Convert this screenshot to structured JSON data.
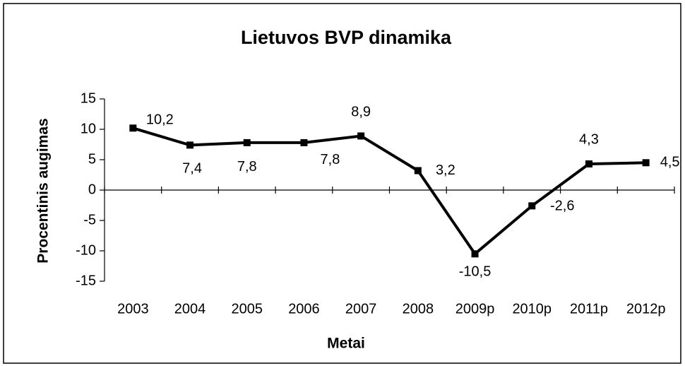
{
  "chart_data": {
    "type": "line",
    "title": "Lietuvos BVP dinamika",
    "x_label": "Metai",
    "y_label": "Procentinis augimas",
    "categories": [
      "2003",
      "2004",
      "2005",
      "2006",
      "2007",
      "2008",
      "2009p",
      "2010p",
      "2011p",
      "2012p"
    ],
    "series": [
      {
        "name": "BVP",
        "color": "#000000",
        "values": [
          10.2,
          7.4,
          7.8,
          7.8,
          8.9,
          3.2,
          -10.5,
          -2.6,
          4.3,
          4.5
        ],
        "value_labels": [
          "10,2",
          "7,4",
          "7,8",
          "7,8",
          "8,9",
          "3,2",
          "-10,5",
          "-2,6",
          "4,3",
          "4,5"
        ]
      }
    ],
    "ylim": [
      -15,
      15
    ],
    "yticks": [
      15,
      10,
      5,
      0,
      -5,
      -10,
      -15
    ],
    "grid": false
  }
}
